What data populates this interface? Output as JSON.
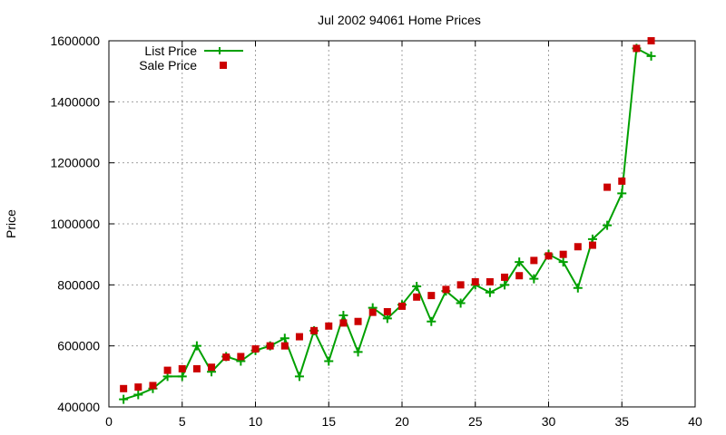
{
  "chart_data": {
    "type": "line",
    "title": "Jul 2002 94061 Home Prices",
    "xlabel": "",
    "ylabel": "Price",
    "xlim": [
      0,
      40
    ],
    "ylim": [
      400000,
      1600000
    ],
    "xticks": [
      0,
      5,
      10,
      15,
      20,
      25,
      30,
      35,
      40
    ],
    "yticks": [
      400000,
      600000,
      800000,
      1000000,
      1200000,
      1400000,
      1600000
    ],
    "grid": true,
    "legend_placement": "top-left",
    "x": [
      1,
      2,
      3,
      4,
      5,
      6,
      7,
      8,
      9,
      10,
      11,
      12,
      13,
      14,
      15,
      16,
      17,
      18,
      19,
      20,
      21,
      22,
      23,
      24,
      25,
      26,
      27,
      28,
      29,
      30,
      31,
      32,
      33,
      34,
      35,
      36,
      37
    ],
    "series": [
      {
        "name": "List Price",
        "style": "linespoints",
        "color": "#00a000",
        "values": [
          425000,
          440000,
          460000,
          500000,
          500000,
          600000,
          515000,
          565000,
          550000,
          585000,
          600000,
          625000,
          500000,
          650000,
          550000,
          700000,
          580000,
          725000,
          690000,
          735000,
          795000,
          680000,
          780000,
          740000,
          800000,
          775000,
          800000,
          875000,
          820000,
          900000,
          875000,
          790000,
          950000,
          995000,
          1100000,
          1575000,
          1550000
        ]
      },
      {
        "name": "Sale Price",
        "style": "points",
        "color": "#cc0000",
        "values": [
          460000,
          465000,
          470000,
          520000,
          525000,
          525000,
          530000,
          563000,
          565000,
          590000,
          600000,
          600000,
          630000,
          650000,
          665000,
          675000,
          680000,
          710000,
          712000,
          730000,
          760000,
          765000,
          785000,
          800000,
          810000,
          810000,
          825000,
          830000,
          880000,
          895000,
          900000,
          925000,
          930000,
          1120000,
          1140000,
          1575000,
          1600000
        ]
      }
    ]
  }
}
